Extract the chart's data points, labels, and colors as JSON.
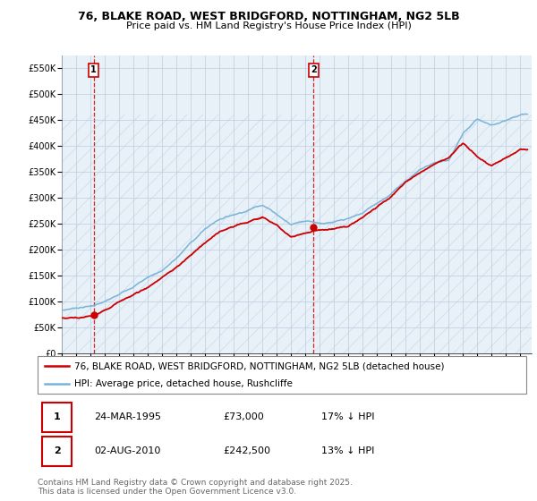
{
  "title_line1": "76, BLAKE ROAD, WEST BRIDGFORD, NOTTINGHAM, NG2 5LB",
  "title_line2": "Price paid vs. HM Land Registry's House Price Index (HPI)",
  "ylim": [
    0,
    575000
  ],
  "yticks": [
    0,
    50000,
    100000,
    150000,
    200000,
    250000,
    300000,
    350000,
    400000,
    450000,
    500000,
    550000
  ],
  "ytick_labels": [
    "£0",
    "£50K",
    "£100K",
    "£150K",
    "£200K",
    "£250K",
    "£300K",
    "£350K",
    "£400K",
    "£450K",
    "£500K",
    "£550K"
  ],
  "xlim_start": 1993.0,
  "xlim_end": 2025.8,
  "sale1_date": 1995.23,
  "sale1_price": 73000,
  "sale1_label": "1",
  "sale2_date": 2010.585,
  "sale2_price": 242500,
  "sale2_label": "2",
  "hpi_color": "#7ab4d8",
  "price_color": "#cc0000",
  "annotation_box_color": "#cc0000",
  "grid_color": "#bbccdd",
  "background_color": "#e8f0f8",
  "hatch_color": "#c5d5e8",
  "legend_label1": "76, BLAKE ROAD, WEST BRIDGFORD, NOTTINGHAM, NG2 5LB (detached house)",
  "legend_label2": "HPI: Average price, detached house, Rushcliffe",
  "table_row1": [
    "1",
    "24-MAR-1995",
    "£73,000",
    "17% ↓ HPI"
  ],
  "table_row2": [
    "2",
    "02-AUG-2010",
    "£242,500",
    "13% ↓ HPI"
  ],
  "footnote": "Contains HM Land Registry data © Crown copyright and database right 2025.\nThis data is licensed under the Open Government Licence v3.0.",
  "title_fontsize": 9,
  "subtitle_fontsize": 8,
  "tick_fontsize": 7,
  "legend_fontsize": 7.5,
  "table_fontsize": 8,
  "footnote_fontsize": 6.5
}
